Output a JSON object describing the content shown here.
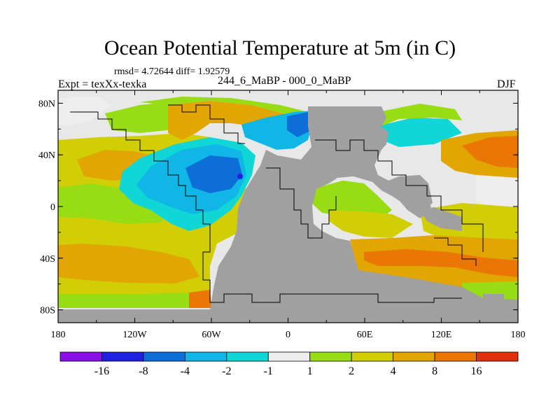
{
  "title": "Ocean Potential Temperature at 5m (in C)",
  "stats": "rmsd= 4.72644  diff= 1.92579",
  "experiment": "Expt = texXx-texka",
  "difference_label": "244_6_MaBP - 000_0_MaBP",
  "season": "DJF",
  "map": {
    "lon_ticks": [
      "180",
      "120W",
      "60W",
      "0",
      "60E",
      "120E",
      "180"
    ],
    "lat_ticks": [
      "80N",
      "40N",
      "0",
      "40S",
      "80S"
    ],
    "land_color": "#a0a0a0",
    "ocean_base_color": "#e8e8e8"
  },
  "colorbar": {
    "labels": [
      "-16",
      "-8",
      "-4",
      "-2",
      "-1",
      "1",
      "2",
      "4",
      "8",
      "16"
    ],
    "colors": [
      "#8a10e8",
      "#2020e0",
      "#0e6ed8",
      "#10b6e6",
      "#10d6d6",
      "#eeeeee",
      "#98dc14",
      "#d2ce06",
      "#e2a602",
      "#ea7606",
      "#e03010"
    ]
  }
}
